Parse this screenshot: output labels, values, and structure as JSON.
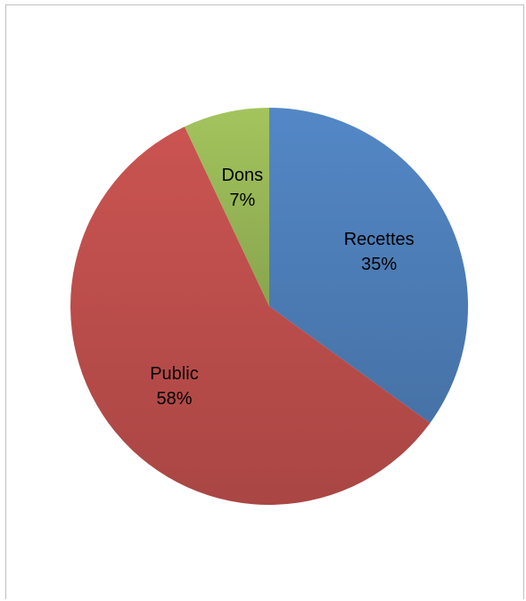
{
  "chart_data": {
    "type": "pie",
    "title": "",
    "slices": [
      {
        "label": "Recettes",
        "value": 35,
        "value_label": "35%",
        "color": "#4F81BD"
      },
      {
        "label": "Public",
        "value": 58,
        "value_label": "58%",
        "color": "#C0504D"
      },
      {
        "label": "Dons",
        "value": 7,
        "value_label": "7%",
        "color": "#9BBB59"
      }
    ],
    "start_angle_deg": 0,
    "direction": "clockwise",
    "legend": "none"
  }
}
